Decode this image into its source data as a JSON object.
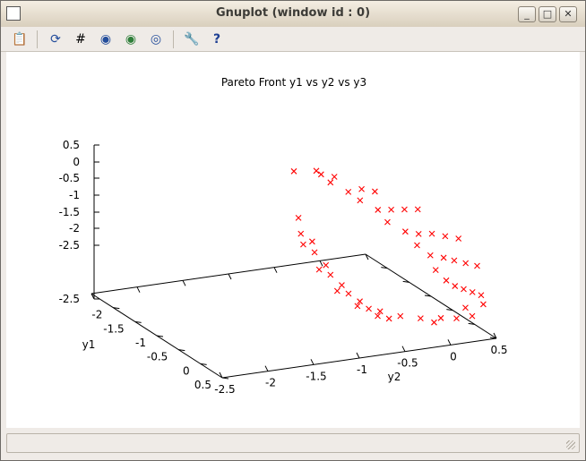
{
  "window": {
    "title": "Gnuplot (window id : 0)",
    "controls": {
      "minimize": "_",
      "maximize": "□",
      "close": "✕"
    }
  },
  "toolbar": {
    "items": [
      {
        "name": "copy-clipboard-icon",
        "glyph": "📋"
      },
      {
        "name": "replot-icon",
        "glyph": "⟳"
      },
      {
        "name": "grid-icon",
        "glyph": "#"
      },
      {
        "name": "zoom-prev-icon",
        "glyph": "◉"
      },
      {
        "name": "zoom-next-icon",
        "glyph": "◉"
      },
      {
        "name": "autoscale-icon",
        "glyph": "◎"
      },
      {
        "name": "preferences-wrench-icon",
        "glyph": "🔧"
      },
      {
        "name": "help-icon",
        "glyph": "?"
      }
    ]
  },
  "chart_data": {
    "type": "scatter",
    "title": "Pareto Front y1 vs y2 vs y3",
    "xlabel": "y1",
    "ylabel": "y2",
    "zlabel": "",
    "xlim": [
      -2.5,
      0.5
    ],
    "ylim": [
      -2.5,
      0.5
    ],
    "zlim": [
      -2.5,
      0.5
    ],
    "x_ticks": [
      "-2",
      "-1.5",
      "-1",
      "-0.5",
      "0",
      "0.5"
    ],
    "y_ticks": [
      "-2.5",
      "-2",
      "-1.5",
      "-1",
      "-0.5",
      "0",
      "0.5"
    ],
    "z_ticks": [
      "0.5",
      "0",
      "-0.5",
      "-1",
      "-1.5",
      "-2",
      "-2.5",
      "-2.5"
    ],
    "marker": "x",
    "color": "#ff0000",
    "grid": false,
    "legend": "none",
    "points": [
      [
        -1.0,
        -1.0,
        0.32
      ],
      [
        -0.8,
        -0.85,
        0.4
      ],
      [
        -0.9,
        -0.75,
        0.25
      ],
      [
        -0.7,
        -0.7,
        0.3
      ],
      [
        -1.0,
        -0.6,
        0.0
      ],
      [
        -0.8,
        -0.5,
        -0.1
      ],
      [
        -0.6,
        -0.45,
        0.05
      ],
      [
        -0.4,
        -0.4,
        0.1
      ],
      [
        -0.95,
        -0.3,
        -0.4
      ],
      [
        -0.75,
        -0.2,
        -0.5
      ],
      [
        -0.55,
        -0.15,
        -0.4
      ],
      [
        -0.35,
        -0.1,
        -0.3
      ],
      [
        -0.15,
        -0.05,
        -0.2
      ],
      [
        -0.95,
        0.0,
        -0.9
      ],
      [
        -0.75,
        0.1,
        -1.0
      ],
      [
        -0.55,
        0.15,
        -0.95
      ],
      [
        -0.35,
        0.2,
        -0.85
      ],
      [
        -0.15,
        0.25,
        -0.8
      ],
      [
        0.05,
        0.3,
        -0.75
      ],
      [
        -0.9,
        0.3,
        -1.4
      ],
      [
        -0.7,
        0.35,
        -1.5
      ],
      [
        -0.5,
        0.4,
        -1.45
      ],
      [
        -0.3,
        0.42,
        -1.4
      ],
      [
        -0.1,
        0.45,
        -1.35
      ],
      [
        0.1,
        0.48,
        -1.3
      ],
      [
        -0.85,
        0.48,
        -1.9
      ],
      [
        -0.65,
        0.5,
        -2.0
      ],
      [
        -0.45,
        0.5,
        -2.0
      ],
      [
        -0.25,
        0.5,
        -1.95
      ],
      [
        -0.05,
        0.5,
        -1.9
      ],
      [
        0.15,
        0.5,
        -1.85
      ],
      [
        -1.0,
        -0.95,
        -0.6
      ],
      [
        -1.0,
        -0.8,
        -1.1
      ],
      [
        -1.0,
        -0.65,
        -1.6
      ],
      [
        -0.95,
        -0.5,
        -2.0
      ],
      [
        -0.85,
        -0.35,
        -2.3
      ],
      [
        -0.7,
        -0.2,
        -2.45
      ],
      [
        -0.55,
        -0.05,
        -2.5
      ],
      [
        -0.4,
        0.1,
        -2.5
      ],
      [
        -0.25,
        0.25,
        -2.45
      ],
      [
        -1.05,
        -0.9,
        -0.95
      ],
      [
        -1.05,
        -0.75,
        -1.35
      ],
      [
        -1.0,
        -0.6,
        -1.8
      ],
      [
        -0.9,
        -0.45,
        -2.15
      ],
      [
        -0.75,
        -0.3,
        -2.4
      ],
      [
        -0.6,
        -0.15,
        -2.55
      ],
      [
        -0.3,
        0.2,
        -2.55
      ],
      [
        -0.1,
        0.35,
        -2.4
      ],
      [
        0.05,
        0.45,
        -2.3
      ],
      [
        -1.1,
        -0.85,
        -1.2
      ],
      [
        -1.05,
        -0.7,
        -1.7
      ],
      [
        -0.95,
        -0.55,
        -2.1
      ],
      [
        -0.8,
        -0.4,
        -2.35
      ],
      [
        -0.65,
        -0.25,
        -2.5
      ],
      [
        0.0,
        0.4,
        -2.15
      ],
      [
        0.2,
        0.5,
        -2.0
      ]
    ]
  }
}
